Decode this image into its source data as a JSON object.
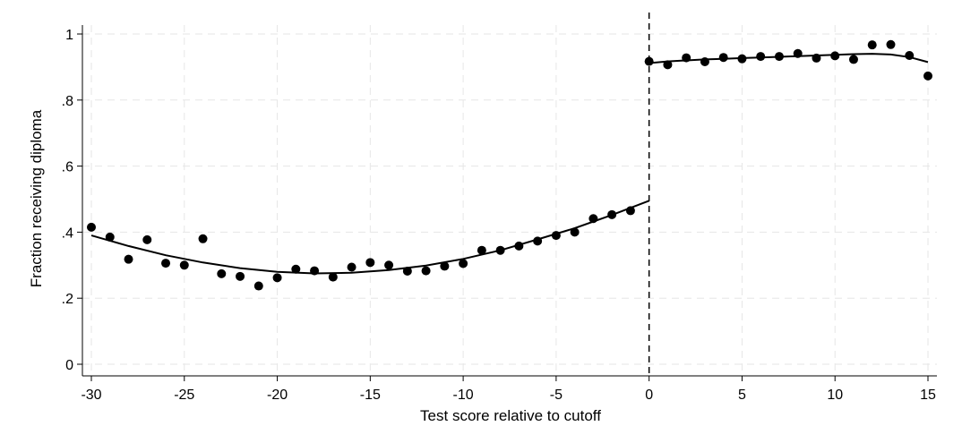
{
  "chart_data": {
    "type": "scatter",
    "title": "",
    "xlabel": "Test score relative to cutoff",
    "ylabel": "Fraction receiving diploma",
    "xlim": [
      -30,
      15
    ],
    "ylim": [
      0,
      1
    ],
    "xticks": [
      -30,
      -25,
      -20,
      -15,
      -10,
      -5,
      0,
      5,
      10,
      15
    ],
    "xtick_labels": [
      "-30",
      "-25",
      "-20",
      "-15",
      "-10",
      "-5",
      "0",
      "5",
      "10",
      "15"
    ],
    "yticks": [
      0,
      0.2,
      0.4,
      0.6,
      0.8,
      1
    ],
    "ytick_labels": [
      "0",
      ".2",
      ".4",
      ".6",
      ".8",
      "1"
    ],
    "grid": true,
    "legend": "none",
    "cutoff": 0,
    "points": {
      "x": [
        -30,
        -29,
        -28,
        -27,
        -26,
        -25,
        -24,
        -23,
        -22,
        -21,
        -20,
        -19,
        -18,
        -17,
        -16,
        -15,
        -14,
        -13,
        -12,
        -11,
        -10,
        -9,
        -8,
        -7,
        -6,
        -5,
        -4,
        -3,
        -2,
        -1,
        0,
        1,
        2,
        3,
        4,
        5,
        6,
        7,
        8,
        9,
        10,
        11,
        12,
        13,
        14,
        15
      ],
      "y": [
        0.415,
        0.385,
        0.318,
        0.377,
        0.306,
        0.3,
        0.38,
        0.274,
        0.266,
        0.237,
        0.262,
        0.288,
        0.283,
        0.264,
        0.294,
        0.308,
        0.3,
        0.282,
        0.283,
        0.297,
        0.305,
        0.345,
        0.345,
        0.358,
        0.373,
        0.39,
        0.4,
        0.441,
        0.453,
        0.465,
        0.917,
        0.907,
        0.928,
        0.916,
        0.929,
        0.925,
        0.932,
        0.932,
        0.941,
        0.927,
        0.934,
        0.923,
        0.967,
        0.968,
        0.935,
        0.873
      ]
    },
    "fit_left": {
      "x": [
        -30,
        -28,
        -26,
        -24,
        -22,
        -20,
        -18,
        -16,
        -14,
        -12,
        -10,
        -8,
        -6,
        -4,
        -2,
        0
      ],
      "y": [
        0.39,
        0.358,
        0.33,
        0.308,
        0.291,
        0.28,
        0.275,
        0.277,
        0.285,
        0.299,
        0.319,
        0.345,
        0.378,
        0.412,
        0.452,
        0.495
      ]
    },
    "fit_right": {
      "x": [
        0,
        1,
        2,
        3,
        4,
        5,
        6,
        7,
        8,
        9,
        10,
        11,
        12,
        13,
        14,
        15
      ],
      "y": [
        0.912,
        0.917,
        0.92,
        0.923,
        0.925,
        0.927,
        0.929,
        0.931,
        0.933,
        0.935,
        0.937,
        0.939,
        0.94,
        0.938,
        0.93,
        0.915
      ]
    }
  }
}
